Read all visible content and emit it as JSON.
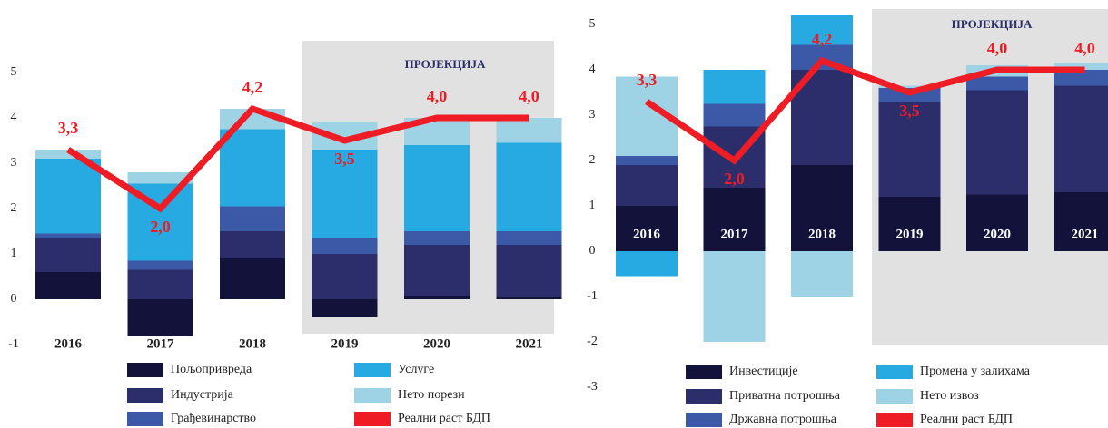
{
  "chart_data": [
    {
      "type": "bar",
      "stacked": true,
      "categories": [
        "2016",
        "2017",
        "2018",
        "2019",
        "2020",
        "2021"
      ],
      "annotation": "ПРОЈЕКЦИЈА",
      "ylim": [
        -1,
        5
      ],
      "yticks": [
        -1,
        0,
        1,
        2,
        3,
        4,
        5
      ],
      "series": [
        {
          "name": "Пољопривреда",
          "color": "#13123b",
          "values": [
            0.6,
            -0.8,
            0.9,
            -0.4,
            0.08,
            0.05
          ]
        },
        {
          "name": "Индустрија",
          "color": "#2b2e6b",
          "values": [
            0.75,
            0.65,
            0.6,
            1.0,
            1.12,
            1.15
          ]
        },
        {
          "name": "Грађевинарство",
          "color": "#3c59a7",
          "values": [
            0.1,
            0.2,
            0.55,
            0.35,
            0.3,
            0.3
          ]
        },
        {
          "name": "Услуге",
          "color": "#27aae1",
          "values": [
            1.65,
            1.7,
            1.7,
            1.95,
            1.9,
            1.95
          ]
        },
        {
          "name": "Нето порези",
          "color": "#9dd3e5",
          "values": [
            0.2,
            0.25,
            0.45,
            0.6,
            0.6,
            0.55
          ]
        },
        {
          "name": "Реални раст БДП",
          "type": "line",
          "color": "#ee1c25",
          "values": [
            3.3,
            2.0,
            4.2,
            3.5,
            4.0,
            4.0
          ],
          "value_labels": [
            "3,3",
            "2,0",
            "4,2",
            "3,5",
            "4,0",
            "4,0"
          ]
        }
      ]
    },
    {
      "type": "bar",
      "stacked": true,
      "categories": [
        "2016",
        "2017",
        "2018",
        "2019",
        "2020",
        "2021"
      ],
      "annotation": "ПРОЈЕКЦИЈА",
      "ylim": [
        -3,
        5
      ],
      "yticks": [
        -3,
        -2,
        -1,
        0,
        1,
        2,
        3,
        4,
        5
      ],
      "series": [
        {
          "name": "Инвестиције",
          "color": "#13123b",
          "values": [
            1.0,
            1.4,
            1.9,
            1.2,
            1.25,
            1.3
          ]
        },
        {
          "name": "Приватна потрошња",
          "color": "#2b2e6b",
          "values": [
            0.9,
            1.35,
            2.1,
            2.1,
            2.3,
            2.35
          ]
        },
        {
          "name": "Државна потрошња",
          "color": "#3c59a7",
          "values": [
            0.2,
            0.5,
            0.55,
            0.3,
            0.3,
            0.35
          ]
        },
        {
          "name": "Промена у залихама",
          "color": "#27aae1",
          "values": [
            -0.55,
            0.75,
            0.65,
            0,
            0,
            0
          ]
        },
        {
          "name": "Нето извоз",
          "color": "#9dd3e5",
          "values": [
            1.75,
            -2.0,
            -1.0,
            0.05,
            0.25,
            0.15
          ]
        },
        {
          "name": "Реални раст БДП",
          "type": "line",
          "color": "#ee1c25",
          "values": [
            3.3,
            2.0,
            4.2,
            3.5,
            4.0,
            4.0
          ],
          "value_labels": [
            "3,3",
            "2,0",
            "4,2",
            "3,5",
            "4,0",
            "4,0"
          ]
        }
      ]
    }
  ]
}
